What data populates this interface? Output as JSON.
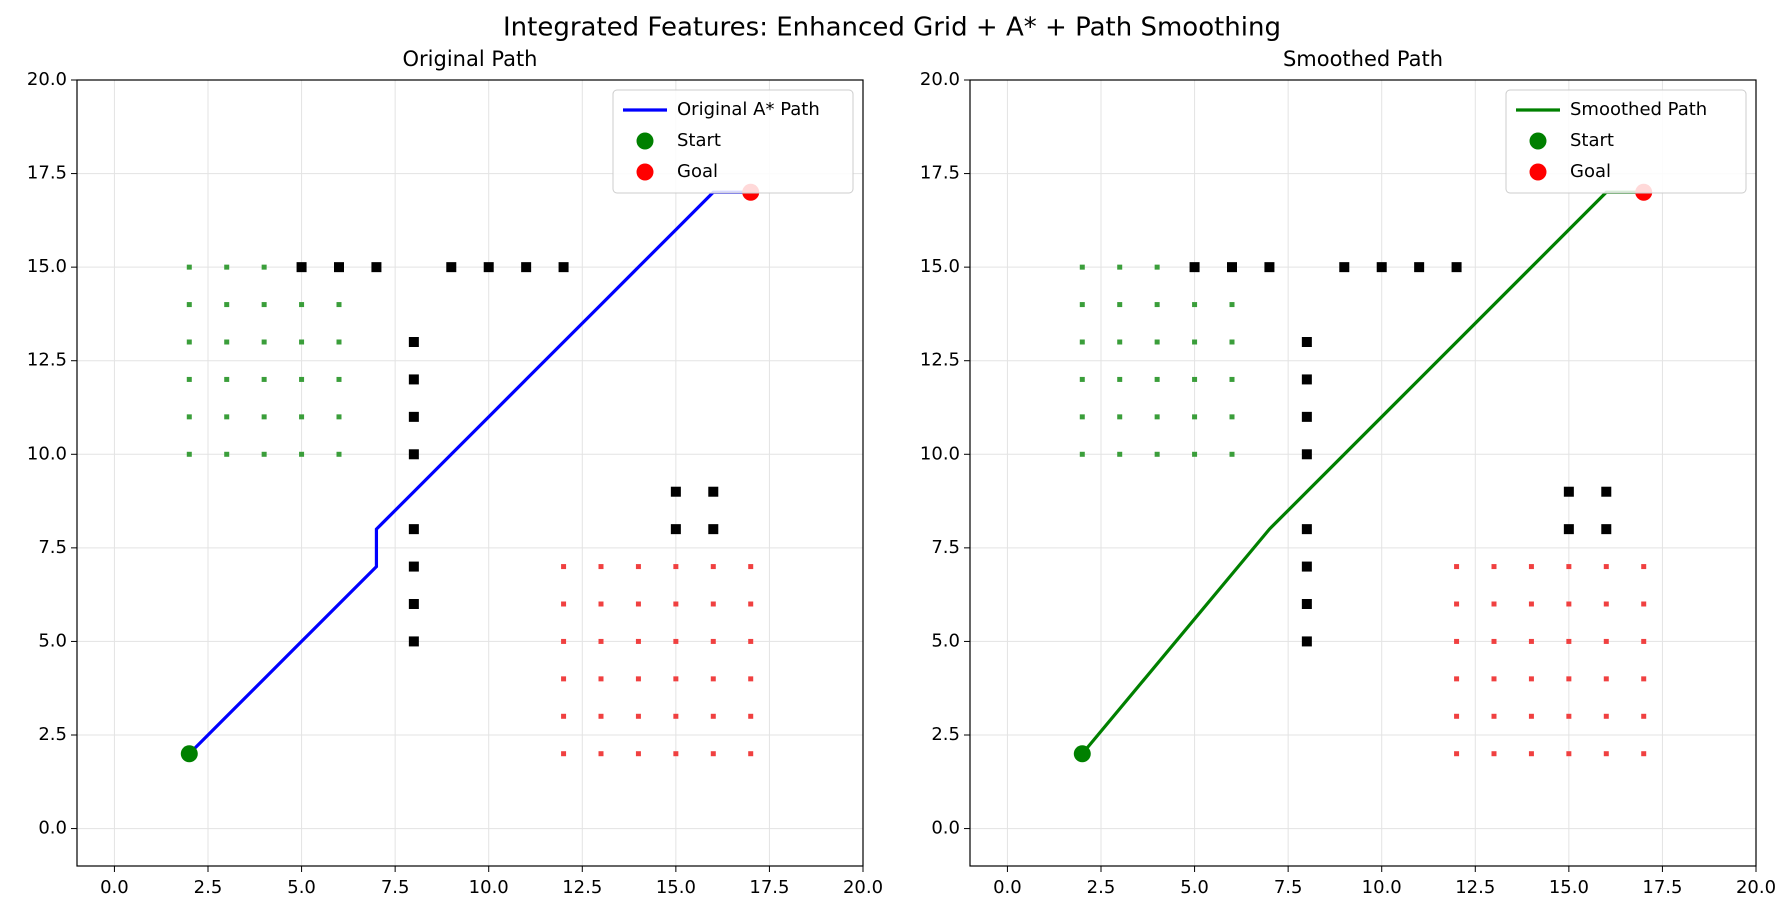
{
  "title": "Integrated Features: Enhanced Grid + A* + Path Smoothing",
  "chart_data": [
    {
      "type": "line",
      "title": "Original Path",
      "xlim": [
        -1,
        20
      ],
      "ylim": [
        -1,
        20
      ],
      "xticks": [
        {
          "value": 0,
          "label": "0.0"
        },
        {
          "value": 2.5,
          "label": "2.5"
        },
        {
          "value": 5,
          "label": "5.0"
        },
        {
          "value": 7.5,
          "label": "7.5"
        },
        {
          "value": 10,
          "label": "10.0"
        },
        {
          "value": 12.5,
          "label": "12.5"
        },
        {
          "value": 15,
          "label": "15.0"
        },
        {
          "value": 17.5,
          "label": "17.5"
        },
        {
          "value": 20,
          "label": "20.0"
        }
      ],
      "yticks": [
        {
          "value": 0,
          "label": "0.0"
        },
        {
          "value": 2.5,
          "label": "2.5"
        },
        {
          "value": 5,
          "label": "5.0"
        },
        {
          "value": 7.5,
          "label": "7.5"
        },
        {
          "value": 10,
          "label": "10.0"
        },
        {
          "value": 12.5,
          "label": "12.5"
        },
        {
          "value": 15,
          "label": "15.0"
        },
        {
          "value": 17.5,
          "label": "17.5"
        },
        {
          "value": 20,
          "label": "20.0"
        }
      ],
      "grid": true,
      "legend": "upper right",
      "series": [
        {
          "marker": "dot",
          "color": "#3a9e3a",
          "x": [
            2,
            3,
            4,
            2,
            3,
            4,
            5,
            6,
            2,
            3,
            4,
            5,
            6,
            2,
            3,
            4,
            5,
            6,
            2,
            3,
            4,
            5,
            6,
            2,
            3,
            4,
            5,
            6
          ],
          "values": [
            15,
            15,
            15,
            14,
            14,
            14,
            14,
            14,
            13,
            13,
            13,
            13,
            13,
            12,
            12,
            12,
            12,
            12,
            11,
            11,
            11,
            11,
            11,
            10,
            10,
            10,
            10,
            10
          ]
        },
        {
          "marker": "dot",
          "color": "#f04040",
          "x": [
            12,
            13,
            14,
            15,
            16,
            17,
            12,
            13,
            14,
            15,
            16,
            17,
            12,
            13,
            14,
            15,
            16,
            17,
            12,
            13,
            14,
            15,
            16,
            17,
            12,
            13,
            14,
            15,
            16,
            17,
            12,
            13,
            14,
            15,
            16,
            17
          ],
          "values": [
            7,
            7,
            7,
            7,
            7,
            7,
            6,
            6,
            6,
            6,
            6,
            6,
            5,
            5,
            5,
            5,
            5,
            5,
            4,
            4,
            4,
            4,
            4,
            4,
            3,
            3,
            3,
            3,
            3,
            3,
            2,
            2,
            2,
            2,
            2,
            2
          ]
        },
        {
          "marker": "square",
          "color": "#000000",
          "x": [
            5,
            6,
            7,
            9,
            10,
            11,
            12,
            8,
            8,
            8,
            8,
            8,
            8,
            8,
            8,
            15,
            16,
            15,
            16
          ],
          "values": [
            15,
            15,
            15,
            15,
            15,
            15,
            15,
            13,
            12,
            11,
            10,
            8,
            7,
            6,
            5,
            9,
            9,
            8,
            8
          ]
        },
        {
          "name": "Original A* Path",
          "marker": "line",
          "color": "#0000ff",
          "x": [
            2,
            3,
            4,
            5,
            6,
            7,
            7,
            8,
            9,
            10,
            11,
            12,
            13,
            14,
            15,
            16,
            17
          ],
          "values": [
            2,
            3,
            4,
            5,
            6,
            7,
            8,
            9,
            10,
            11,
            12,
            13,
            14,
            15,
            16,
            17,
            17
          ]
        },
        {
          "name": "Start",
          "marker": "circle",
          "color": "#008000",
          "x": [
            2
          ],
          "values": [
            2
          ]
        },
        {
          "name": "Goal",
          "marker": "circle",
          "color": "#ff0000",
          "x": [
            17
          ],
          "values": [
            17
          ]
        }
      ]
    },
    {
      "type": "line",
      "title": "Smoothed Path",
      "xlim": [
        -1,
        20
      ],
      "ylim": [
        -1,
        20
      ],
      "xticks": [
        {
          "value": 0,
          "label": "0.0"
        },
        {
          "value": 2.5,
          "label": "2.5"
        },
        {
          "value": 5,
          "label": "5.0"
        },
        {
          "value": 7.5,
          "label": "7.5"
        },
        {
          "value": 10,
          "label": "10.0"
        },
        {
          "value": 12.5,
          "label": "12.5"
        },
        {
          "value": 15,
          "label": "15.0"
        },
        {
          "value": 17.5,
          "label": "17.5"
        },
        {
          "value": 20,
          "label": "20.0"
        }
      ],
      "yticks": [
        {
          "value": 0,
          "label": "0.0"
        },
        {
          "value": 2.5,
          "label": "2.5"
        },
        {
          "value": 5,
          "label": "5.0"
        },
        {
          "value": 7.5,
          "label": "7.5"
        },
        {
          "value": 10,
          "label": "10.0"
        },
        {
          "value": 12.5,
          "label": "12.5"
        },
        {
          "value": 15,
          "label": "15.0"
        },
        {
          "value": 17.5,
          "label": "17.5"
        },
        {
          "value": 20,
          "label": "20.0"
        }
      ],
      "grid": true,
      "legend": "upper right",
      "series": [
        {
          "marker": "dot",
          "color": "#3a9e3a",
          "x": [
            2,
            3,
            4,
            2,
            3,
            4,
            5,
            6,
            2,
            3,
            4,
            5,
            6,
            2,
            3,
            4,
            5,
            6,
            2,
            3,
            4,
            5,
            6,
            2,
            3,
            4,
            5,
            6
          ],
          "values": [
            15,
            15,
            15,
            14,
            14,
            14,
            14,
            14,
            13,
            13,
            13,
            13,
            13,
            12,
            12,
            12,
            12,
            12,
            11,
            11,
            11,
            11,
            11,
            10,
            10,
            10,
            10,
            10
          ]
        },
        {
          "marker": "dot",
          "color": "#f04040",
          "x": [
            12,
            13,
            14,
            15,
            16,
            17,
            12,
            13,
            14,
            15,
            16,
            17,
            12,
            13,
            14,
            15,
            16,
            17,
            12,
            13,
            14,
            15,
            16,
            17,
            12,
            13,
            14,
            15,
            16,
            17,
            12,
            13,
            14,
            15,
            16,
            17
          ],
          "values": [
            7,
            7,
            7,
            7,
            7,
            7,
            6,
            6,
            6,
            6,
            6,
            6,
            5,
            5,
            5,
            5,
            5,
            5,
            4,
            4,
            4,
            4,
            4,
            4,
            3,
            3,
            3,
            3,
            3,
            3,
            2,
            2,
            2,
            2,
            2,
            2
          ]
        },
        {
          "marker": "square",
          "color": "#000000",
          "x": [
            5,
            6,
            7,
            9,
            10,
            11,
            12,
            8,
            8,
            8,
            8,
            8,
            8,
            8,
            8,
            15,
            16,
            15,
            16
          ],
          "values": [
            15,
            15,
            15,
            15,
            15,
            15,
            15,
            13,
            12,
            11,
            10,
            8,
            7,
            6,
            5,
            9,
            9,
            8,
            8
          ]
        },
        {
          "name": "Smoothed Path",
          "marker": "line",
          "color": "#008000",
          "x": [
            2,
            7,
            16,
            17
          ],
          "values": [
            2,
            8,
            17,
            17
          ]
        },
        {
          "name": "Start",
          "marker": "circle",
          "color": "#008000",
          "x": [
            2
          ],
          "values": [
            2
          ]
        },
        {
          "name": "Goal",
          "marker": "circle",
          "color": "#ff0000",
          "x": [
            17
          ],
          "values": [
            17
          ]
        }
      ]
    }
  ]
}
